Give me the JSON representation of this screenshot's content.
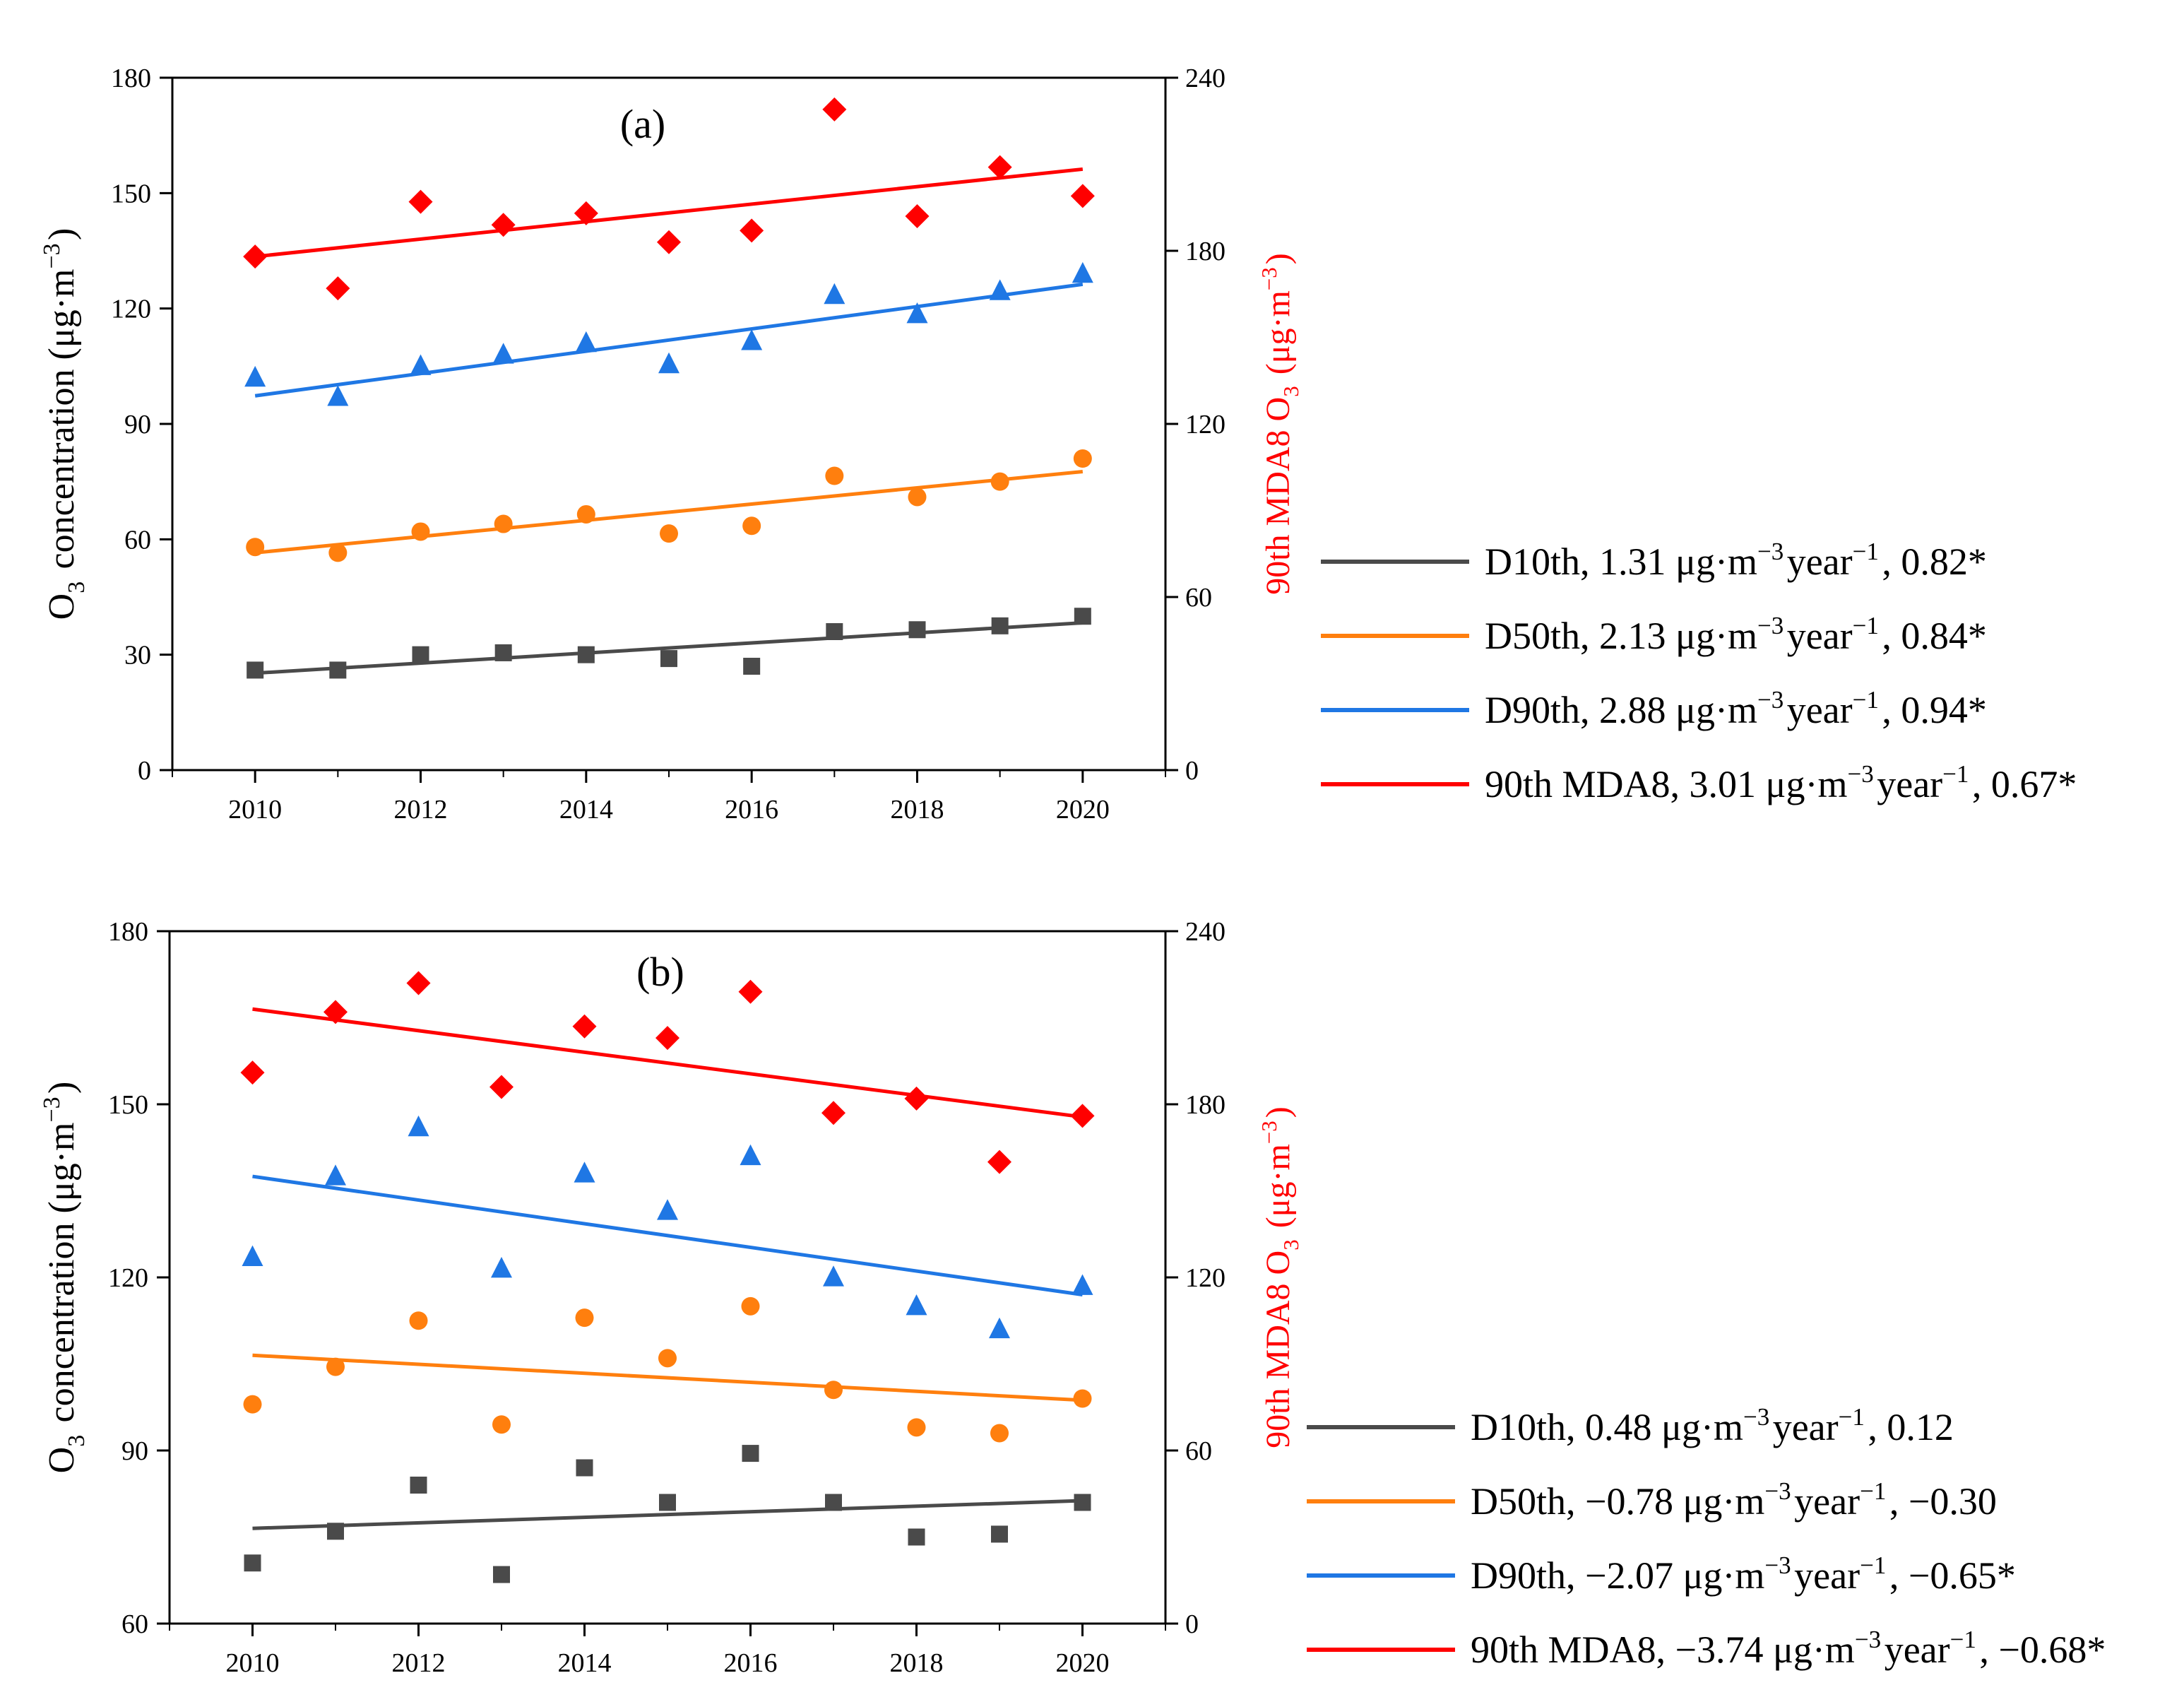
{
  "chart_data": [
    {
      "type": "scatter",
      "panel_label": "(a)",
      "x": [
        2010,
        2011,
        2012,
        2013,
        2014,
        2015,
        2016,
        2017,
        2018,
        2019,
        2020
      ],
      "xlim": [
        2009,
        2021
      ],
      "xticks": [
        "2010",
        "2012",
        "2014",
        "2016",
        "2018",
        "2020"
      ],
      "ylabel": "O3 concentration (μg·m−3)",
      "ylim": [
        0,
        180
      ],
      "yticks": [
        "0",
        "30",
        "60",
        "90",
        "120",
        "150",
        "180"
      ],
      "y2label": "90th MDA8 O3 (μg·m−3)",
      "y2lim": [
        0,
        240
      ],
      "y2ticks": [
        "0",
        "60",
        "120",
        "180",
        "240"
      ],
      "series": [
        {
          "name": "D10th",
          "legend": "D10th, 1.31 μg·m−3year−1, 0.82*",
          "color": "#4a4a4a",
          "marker": "square",
          "axis": "left",
          "values": [
            26,
            26,
            30,
            30.5,
            30,
            29,
            27,
            36,
            36.5,
            37.5,
            40
          ],
          "trend": [
            25.2,
            38.3
          ]
        },
        {
          "name": "D50th",
          "legend": "D50th, 2.13 μg·m−3year−1, 0.84*",
          "color": "#ff7f0e",
          "marker": "circle",
          "axis": "left",
          "values": [
            58,
            56.5,
            62,
            64,
            66.5,
            61.5,
            63.5,
            76.5,
            71,
            75,
            81
          ],
          "trend": [
            56.5,
            77.6
          ]
        },
        {
          "name": "D90th",
          "legend": "D90th, 2.88 μg·m−3year−1, 0.94*",
          "color": "#1f77e4",
          "marker": "triangle",
          "axis": "left",
          "values": [
            102,
            97,
            105,
            108,
            111,
            105.5,
            111.5,
            123.5,
            118.5,
            124.5,
            129
          ],
          "trend": [
            97.3,
            126.3
          ]
        },
        {
          "name": "90th MDA8",
          "legend": "90th MDA8, 3.01 μg·m−3year−1, 0.67*",
          "color": "#ff0000",
          "marker": "diamond",
          "axis": "right",
          "values": [
            178,
            167,
            197,
            189,
            193,
            183,
            187,
            229,
            192,
            209,
            199
          ],
          "trend": [
            178,
            208.3
          ]
        }
      ]
    },
    {
      "type": "scatter",
      "panel_label": "(b)",
      "x": [
        2010,
        2011,
        2012,
        2013,
        2014,
        2015,
        2016,
        2017,
        2018,
        2019,
        2020
      ],
      "xlim": [
        2009,
        2021
      ],
      "xticks": [
        "2010",
        "2012",
        "2014",
        "2016",
        "2018",
        "2020"
      ],
      "ylabel": "O3 concentration (μg·m−3)",
      "ylim": [
        60,
        180
      ],
      "yticks": [
        "60",
        "90",
        "120",
        "150",
        "180"
      ],
      "y2label": "90th MDA8 O3 (μg·m−3)",
      "y2lim": [
        0,
        240
      ],
      "y2ticks": [
        "0",
        "60",
        "120",
        "180",
        "240"
      ],
      "series": [
        {
          "name": "D10th",
          "legend": "D10th, 0.48 μg·m−3year−1, 0.12",
          "color": "#4a4a4a",
          "marker": "square",
          "axis": "left",
          "values": [
            70.5,
            76,
            84,
            68.5,
            87,
            81,
            89.5,
            81,
            75,
            75.5,
            81
          ],
          "trend": [
            76.5,
            81.3
          ]
        },
        {
          "name": "D50th",
          "legend": "D50th, −0.78 μg·m−3year−1, −0.30",
          "color": "#ff7f0e",
          "marker": "circle",
          "axis": "left",
          "values": [
            98,
            104.5,
            112.5,
            94.5,
            113,
            106,
            115,
            100.5,
            94,
            93,
            99
          ],
          "trend": [
            106.5,
            98.7
          ]
        },
        {
          "name": "D90th",
          "legend": "D90th, −2.07 μg·m−3year−1, −0.65*",
          "color": "#1f77e4",
          "marker": "triangle",
          "axis": "left",
          "values": [
            123.5,
            137.5,
            146,
            121.5,
            138,
            131.5,
            141,
            120,
            115,
            111,
            118.5
          ],
          "trend": [
            137.5,
            117
          ]
        },
        {
          "name": "90th MDA8",
          "legend": "90th MDA8, −3.74 μg·m−3year−1, −0.68*",
          "color": "#ff0000",
          "marker": "diamond",
          "axis": "right",
          "values": [
            191,
            212,
            222,
            186,
            207,
            203,
            219,
            177,
            182,
            160,
            176
          ],
          "trend": [
            213,
            175.6
          ]
        }
      ]
    }
  ]
}
